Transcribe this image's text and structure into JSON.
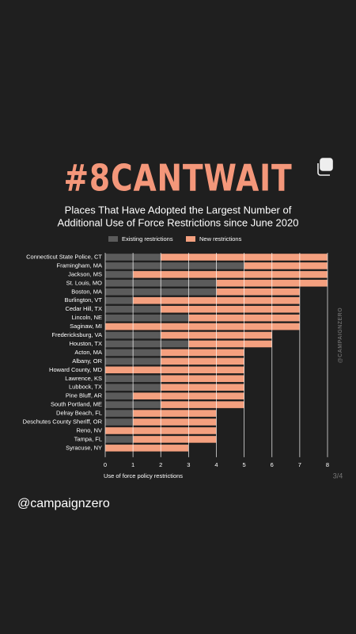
{
  "page": {
    "watermark": "@CAMPAIGNZERO",
    "page_indicator": "3/4",
    "handle": "@campaignzero"
  },
  "chart_data": {
    "type": "bar",
    "orientation": "horizontal",
    "stacked": true,
    "title": "#8CANTWAIT",
    "subtitle": [
      "Places That Have Adopted the Largest Number of",
      "Additional Use of Force Restrictions since June 2020"
    ],
    "x_label": "Use of force policy restrictions",
    "categories": [
      "Connecticut State Police, CT",
      "Framingham, MA",
      "Jackson, MS",
      "St. Louis, MO",
      "Boston, MA",
      "Burlington, VT",
      "Cedar Hill, TX",
      "Lincoln, NE",
      "Saginaw, MI",
      "Fredericksburg, VA",
      "Houston, TX",
      "Acton, MA",
      "Albany, OR",
      "Howard County, MD",
      "Lawrence, KS",
      "Lubbock, TX",
      "Pine Bluff, AR",
      "South Portland, ME",
      "Delray Beach, FL",
      "Deschutes County Sheriff, OR",
      "Reno, NV",
      "Tampa, FL",
      "Syracuse, NY"
    ],
    "series": [
      {
        "name": "Existing restrictions",
        "color": "#5b5b5b",
        "values": [
          2,
          5,
          1,
          4,
          4,
          1,
          2,
          3,
          0,
          2,
          3,
          2,
          2,
          0,
          2,
          2,
          1,
          2,
          1,
          1,
          0,
          1,
          0
        ]
      },
      {
        "name": "New restrictions",
        "color": "#f4a07f",
        "values": [
          6,
          3,
          7,
          4,
          3,
          6,
          5,
          4,
          7,
          4,
          3,
          3,
          3,
          5,
          3,
          3,
          4,
          3,
          3,
          3,
          4,
          3,
          3
        ]
      }
    ],
    "xlim": [
      0,
      8
    ],
    "xticks": [
      0,
      1,
      2,
      3,
      4,
      5,
      6,
      7,
      8
    ],
    "grid": true,
    "legend": "top"
  }
}
